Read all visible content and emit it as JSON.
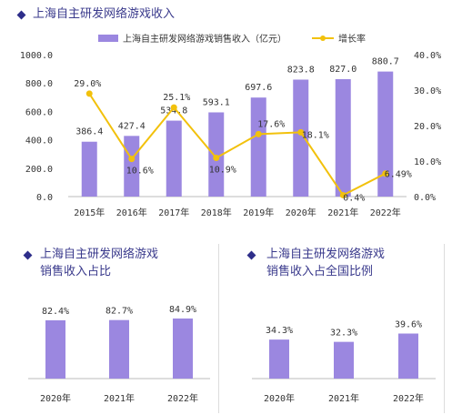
{
  "top": {
    "title": "上海自主研发网络游戏收入",
    "legend_bar": "上海自主研发网络游戏销售收入（亿元）",
    "legend_line": "增长率"
  },
  "bottom_left": {
    "title_line1": "上海自主研发网络游戏",
    "title_line2": "销售收入占比"
  },
  "bottom_right": {
    "title_line1": "上海自主研发网络游戏",
    "title_line2": "销售收入占全国比例"
  },
  "colors": {
    "bar": "#9b87e0",
    "line": "#f2c10c",
    "title": "#3a3a8c",
    "diamond": "#2e2e8a"
  },
  "chart_data": [
    {
      "type": "bar",
      "title": "上海自主研发网络游戏收入",
      "categories": [
        "2015年",
        "2016年",
        "2017年",
        "2018年",
        "2019年",
        "2020年",
        "2021年",
        "2022年"
      ],
      "series": [
        {
          "name": "上海自主研发网络游戏销售收入（亿元）",
          "type": "bar",
          "axis": "left",
          "values": [
            386.4,
            427.4,
            534.8,
            593.1,
            697.6,
            823.8,
            827.0,
            880.7
          ],
          "labels": [
            "386.4",
            "427.4",
            "534.8",
            "593.1",
            "697.6",
            "823.8",
            "827.0",
            "880.7"
          ]
        },
        {
          "name": "增长率",
          "type": "line",
          "axis": "right",
          "values": [
            29.0,
            10.6,
            25.1,
            10.9,
            17.6,
            18.1,
            0.4,
            6.49
          ],
          "labels": [
            "29.0%",
            "10.6%",
            "25.1%",
            "10.9%",
            "17.6%",
            "18.1%",
            "0.4%",
            "6.49%"
          ]
        }
      ],
      "y_left": {
        "ylim": [
          0,
          1000
        ],
        "ticks": [
          "0.0",
          "200.0",
          "400.0",
          "600.0",
          "800.0",
          "1000.0"
        ]
      },
      "y_right": {
        "ylim": [
          0,
          40
        ],
        "ticks": [
          "0.0%",
          "10.0%",
          "20.0%",
          "30.0%",
          "40.0%"
        ]
      },
      "legend": "top",
      "grid": false
    },
    {
      "type": "bar",
      "title": "上海自主研发网络游戏销售收入占比",
      "categories": [
        "2020年",
        "2021年",
        "2022年"
      ],
      "values": [
        82.4,
        82.7,
        84.9
      ],
      "labels": [
        "82.4%",
        "82.7%",
        "84.9%"
      ]
    },
    {
      "type": "bar",
      "title": "上海自主研发网络游戏销售收入占全国比例",
      "categories": [
        "2020年",
        "2021年",
        "2022年"
      ],
      "values": [
        34.3,
        32.3,
        39.6
      ],
      "labels": [
        "34.3%",
        "32.3%",
        "39.6%"
      ]
    }
  ]
}
